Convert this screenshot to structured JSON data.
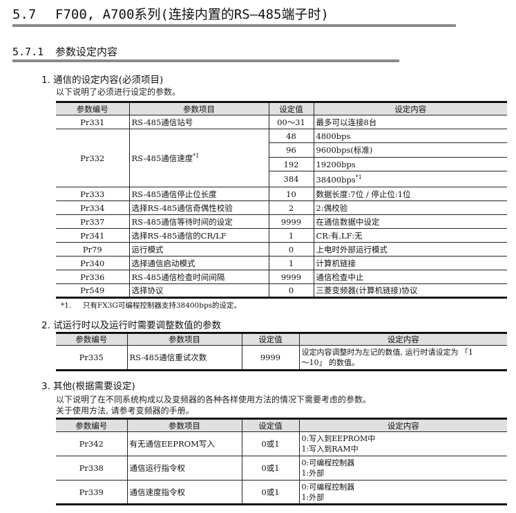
{
  "title": {
    "number": "5.7",
    "text": "F700, A700系列(连接内置的RS—485端子时)"
  },
  "subtitle": {
    "number": "5.7.1",
    "text": "参数设定内容"
  },
  "headers": [
    "参数编号",
    "参数项目",
    "设定值",
    "设定内容"
  ],
  "section1": {
    "heading": "1. 通信的设定内容(必须项目)",
    "desc": "以下说明了必须进行设定的参数。",
    "rows": [
      {
        "no": "Pr331",
        "item": "RS-485通信站号",
        "value": "00～31",
        "content": "最多可以连接8台"
      },
      {
        "no": "Pr332",
        "item": "RS-485通信速度",
        "item_sup": "*1",
        "sub": [
          {
            "value": "48",
            "content": "4800bps"
          },
          {
            "value": "96",
            "content": "9600bps(标准)"
          },
          {
            "value": "192",
            "content": "19200bps"
          },
          {
            "value": "384",
            "content": "38400bps",
            "sup": "*1"
          }
        ]
      },
      {
        "no": "Pr333",
        "item": "RS-485通信停止位长度",
        "value": "10",
        "content": "数据长度:7位 / 停止位:1位"
      },
      {
        "no": "Pr334",
        "item": "选择RS-485通信奇偶性校验",
        "value": "2",
        "content": "2:偶校验"
      },
      {
        "no": "Pr337",
        "item": "RS-485通信等待时间的设定",
        "value": "9999",
        "content": "在通信数据中设定"
      },
      {
        "no": "Pr341",
        "item": "选择RS-485通信的CR/LF",
        "value": "1",
        "content": "CR:有,LF:无"
      },
      {
        "no": "Pr79",
        "item": "运行模式",
        "value": "0",
        "content": "上电时外部运行模式"
      },
      {
        "no": "Pr340",
        "item": "选择通信启动模式",
        "value": "1",
        "content": "计算机链接"
      },
      {
        "no": "Pr336",
        "item": "RS-485通信检查时间间隔",
        "value": "9999",
        "content": "通信检查中止"
      },
      {
        "no": "Pr549",
        "item": "选择协议",
        "value": "0",
        "content": "三菱变频器(计算机链接)协议"
      }
    ],
    "footnote_mark": "*1.",
    "footnote": "只有FX3G可编程控制器支持38400bps的设定。"
  },
  "section2": {
    "heading": "2. 试运行时以及运行时需要调整数值的参数",
    "row": {
      "no": "Pr335",
      "item": "RS-485通信重试次数",
      "value": "9999",
      "content1": "设定内容调整时为左记的数值, 运行时请设定为 「1",
      "content2": "～10」 的数值。"
    }
  },
  "section3": {
    "heading": "3. 其他(根据需要设定)",
    "desc1": "以下说明了在不同系统构成以及变频器的各种各样使用方法的情况下需要考虑的参数。",
    "desc2": "关于使用方法, 请参考变频器的手册。",
    "rows": [
      {
        "no": "Pr342",
        "item": "有无通信EEPROM写入",
        "value": "0或1",
        "c1": "0:写入到EEPROM中",
        "c2": "1:写入到RAM中"
      },
      {
        "no": "Pr338",
        "item": "通信运行指令权",
        "value": "0或1",
        "c1": "0:可编程控制器",
        "c2": "1:外部"
      },
      {
        "no": "Pr339",
        "item": "通信速度指令权",
        "value": "0或1",
        "c1": "0:可编程控制器",
        "c2": "1:外部"
      }
    ]
  }
}
